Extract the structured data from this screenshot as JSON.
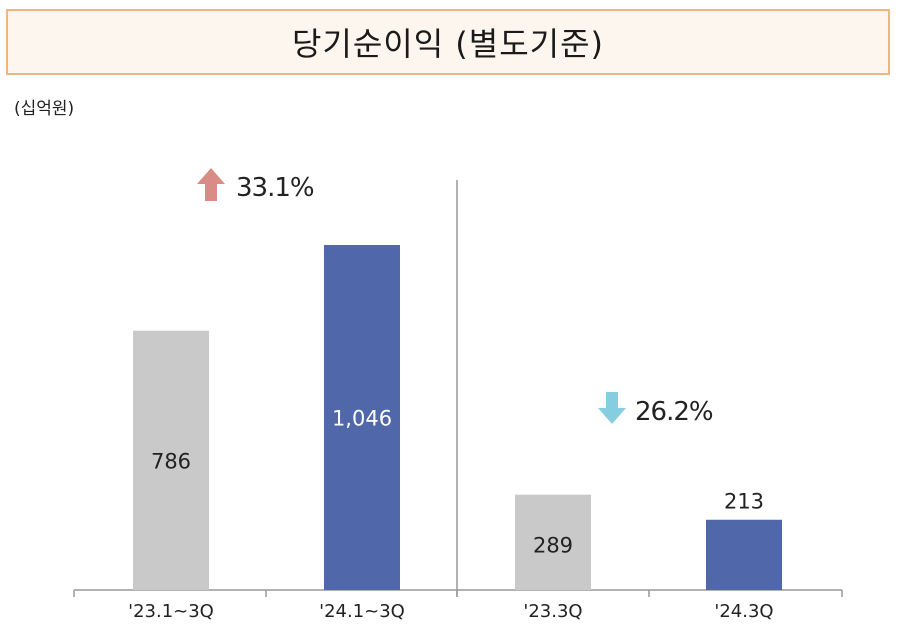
{
  "title": "당기순이익 (별도기준)",
  "unit": "(십억원)",
  "colors": {
    "prior": "#c9c9c9",
    "current": "#5068a9",
    "up_arrow": "#d98b86",
    "down_arrow": "#86cde0"
  },
  "chart_data": [
    {
      "type": "bar",
      "categories": [
        "'23.1~3Q",
        "'24.1~3Q"
      ],
      "values": [
        786,
        1046
      ],
      "value_labels": [
        "786",
        "1,046"
      ],
      "change": {
        "direction": "up",
        "label": "33.1%"
      }
    },
    {
      "type": "bar",
      "categories": [
        "'23.3Q",
        "'24.3Q"
      ],
      "values": [
        289,
        213
      ],
      "value_labels": [
        "289",
        "213"
      ],
      "change": {
        "direction": "down",
        "label": "26.2%"
      }
    }
  ]
}
